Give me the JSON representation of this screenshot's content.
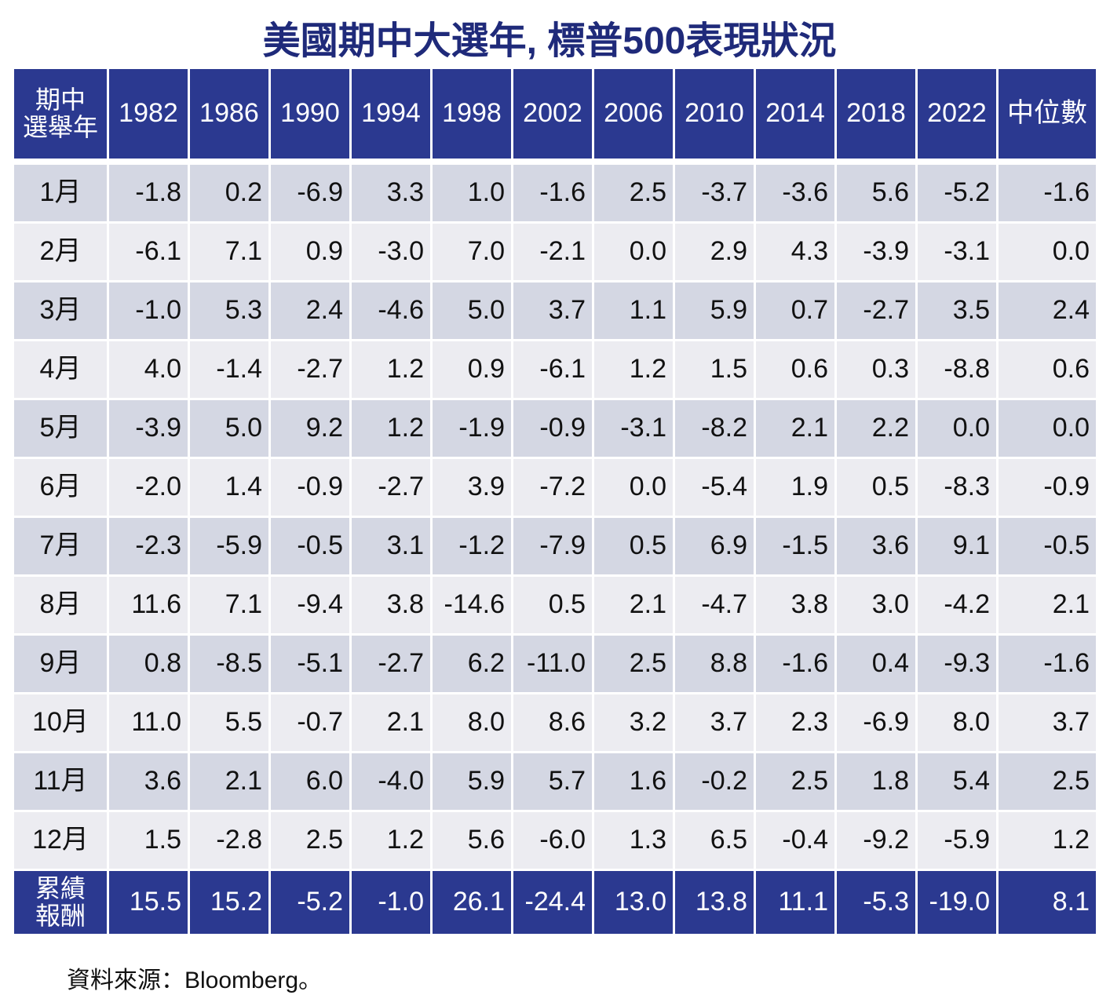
{
  "title": "美國期中大選年, 標普500表現狀況",
  "table": {
    "header": [
      "期中\n選舉年",
      "1982",
      "1986",
      "1990",
      "1994",
      "1998",
      "2002",
      "2006",
      "2010",
      "2014",
      "2018",
      "2022",
      "中位數"
    ],
    "rows": [
      [
        "1月",
        "-1.8",
        "0.2",
        "-6.9",
        "3.3",
        "1.0",
        "-1.6",
        "2.5",
        "-3.7",
        "-3.6",
        "5.6",
        "-5.2",
        "-1.6"
      ],
      [
        "2月",
        "-6.1",
        "7.1",
        "0.9",
        "-3.0",
        "7.0",
        "-2.1",
        "0.0",
        "2.9",
        "4.3",
        "-3.9",
        "-3.1",
        "0.0"
      ],
      [
        "3月",
        "-1.0",
        "5.3",
        "2.4",
        "-4.6",
        "5.0",
        "3.7",
        "1.1",
        "5.9",
        "0.7",
        "-2.7",
        "3.5",
        "2.4"
      ],
      [
        "4月",
        "4.0",
        "-1.4",
        "-2.7",
        "1.2",
        "0.9",
        "-6.1",
        "1.2",
        "1.5",
        "0.6",
        "0.3",
        "-8.8",
        "0.6"
      ],
      [
        "5月",
        "-3.9",
        "5.0",
        "9.2",
        "1.2",
        "-1.9",
        "-0.9",
        "-3.1",
        "-8.2",
        "2.1",
        "2.2",
        "0.0",
        "0.0"
      ],
      [
        "6月",
        "-2.0",
        "1.4",
        "-0.9",
        "-2.7",
        "3.9",
        "-7.2",
        "0.0",
        "-5.4",
        "1.9",
        "0.5",
        "-8.3",
        "-0.9"
      ],
      [
        "7月",
        "-2.3",
        "-5.9",
        "-0.5",
        "3.1",
        "-1.2",
        "-7.9",
        "0.5",
        "6.9",
        "-1.5",
        "3.6",
        "9.1",
        "-0.5"
      ],
      [
        "8月",
        "11.6",
        "7.1",
        "-9.4",
        "3.8",
        "-14.6",
        "0.5",
        "2.1",
        "-4.7",
        "3.8",
        "3.0",
        "-4.2",
        "2.1"
      ],
      [
        "9月",
        "0.8",
        "-8.5",
        "-5.1",
        "-2.7",
        "6.2",
        "-11.0",
        "2.5",
        "8.8",
        "-1.6",
        "0.4",
        "-9.3",
        "-1.6"
      ],
      [
        "10月",
        "11.0",
        "5.5",
        "-0.7",
        "2.1",
        "8.0",
        "8.6",
        "3.2",
        "3.7",
        "2.3",
        "-6.9",
        "8.0",
        "3.7"
      ],
      [
        "11月",
        "3.6",
        "2.1",
        "6.0",
        "-4.0",
        "5.9",
        "5.7",
        "1.6",
        "-0.2",
        "2.5",
        "1.8",
        "5.4",
        "2.5"
      ],
      [
        "12月",
        "1.5",
        "-2.8",
        "2.5",
        "1.2",
        "5.6",
        "-6.0",
        "1.3",
        "6.5",
        "-0.4",
        "-9.2",
        "-5.9",
        "1.2"
      ]
    ],
    "total": [
      "累績\n報酬",
      "15.5",
      "15.2",
      "-5.2",
      "-1.0",
      "26.1",
      "-24.4",
      "13.0",
      "13.8",
      "11.1",
      "-5.3",
      "-19.0",
      "8.1"
    ]
  },
  "source": "資料來源：Bloomberg。"
}
